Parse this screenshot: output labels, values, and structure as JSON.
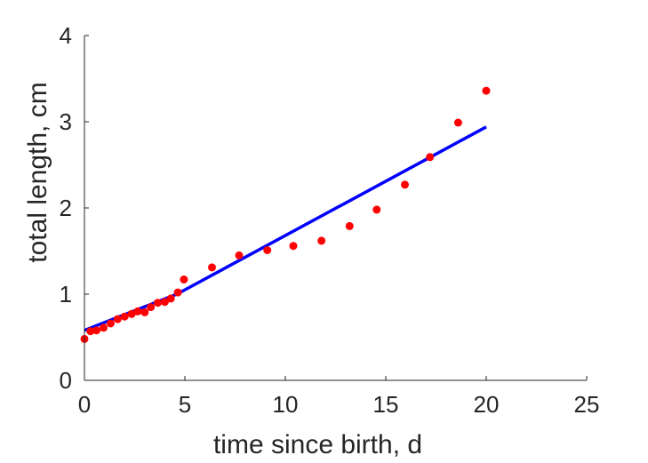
{
  "chart_data": {
    "type": "scatter",
    "title": "",
    "xlabel": "time since birth, d",
    "ylabel": "total length, cm",
    "xlim": [
      0,
      25
    ],
    "ylim": [
      0,
      4
    ],
    "xticks": [
      "0",
      "5",
      "10",
      "15",
      "20",
      "25"
    ],
    "yticks": [
      "0",
      "1",
      "2",
      "3",
      "4"
    ],
    "grid": false,
    "series": [
      {
        "kind": "points",
        "color": "#ff0000",
        "points": [
          [
            0.0,
            0.48
          ],
          [
            0.3,
            0.57
          ],
          [
            0.6,
            0.58
          ],
          [
            0.95,
            0.61
          ],
          [
            1.3,
            0.66
          ],
          [
            1.65,
            0.71
          ],
          [
            2.0,
            0.74
          ],
          [
            2.35,
            0.77
          ],
          [
            2.65,
            0.8
          ],
          [
            3.0,
            0.79
          ],
          [
            3.3,
            0.85
          ],
          [
            3.65,
            0.9
          ],
          [
            4.0,
            0.91
          ],
          [
            4.3,
            0.95
          ],
          [
            4.65,
            1.02
          ],
          [
            4.95,
            1.17
          ],
          [
            6.35,
            1.31
          ],
          [
            7.7,
            1.45
          ],
          [
            9.1,
            1.51
          ],
          [
            10.4,
            1.56
          ],
          [
            11.8,
            1.62
          ],
          [
            13.2,
            1.79
          ],
          [
            14.55,
            1.98
          ],
          [
            15.95,
            2.27
          ],
          [
            17.2,
            2.59
          ],
          [
            18.6,
            2.99
          ],
          [
            20.0,
            3.36
          ]
        ]
      },
      {
        "kind": "line",
        "color": "#0000ff",
        "points": [
          [
            0.0,
            0.58
          ],
          [
            4.6,
            1.0
          ],
          [
            20.0,
            2.94
          ]
        ]
      }
    ]
  }
}
